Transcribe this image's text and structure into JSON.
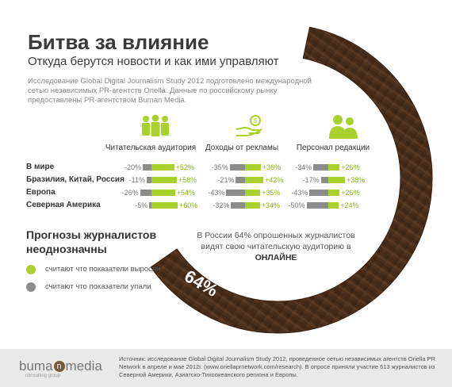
{
  "header": {
    "title": "Битва за влияние",
    "subtitle": "Откуда берутся новости и как ими управляют",
    "intro": "Исследование Global Digital Journalism Study 2012 подготовлено международной сетью независимых PR-агентств Oriella. Данные по российскому рынку предоставлены PR-агентством Buman Media."
  },
  "chart_data": {
    "type": "bar",
    "categories": [
      "В мире",
      "Бразилия, Китай, Россия",
      "Европа",
      "Северная Америка"
    ],
    "groups": [
      {
        "label": "Читательская аудитория",
        "icon": "people-group-icon",
        "negative": [
          -20,
          -11,
          -26,
          -5
        ],
        "positive": [
          52,
          58,
          54,
          60
        ],
        "negative_labels": [
          "-20%",
          "-11%",
          "-26%",
          "-5%"
        ],
        "positive_labels": [
          "+52%",
          "+58%",
          "+54%",
          "+60%"
        ]
      },
      {
        "label": "Доходы от рекламы",
        "icon": "hand-coins-icon",
        "negative": [
          -35,
          -21,
          -43,
          -32
        ],
        "positive": [
          36,
          42,
          35,
          34
        ],
        "negative_labels": [
          "-35%",
          "-21%",
          "-43%",
          "-32%"
        ],
        "positive_labels": [
          "+36%",
          "+42%",
          "+35%",
          "+34%"
        ]
      },
      {
        "label": "Персонал редакции",
        "icon": "staff-pair-icon",
        "negative": [
          -34,
          -17,
          -43,
          -50
        ],
        "positive": [
          26,
          38,
          26,
          24
        ],
        "negative_labels": [
          "-34%",
          "-17%",
          "-43%",
          "-50%"
        ],
        "positive_labels": [
          "+26%",
          "+38%",
          "+26%",
          "+24%"
        ]
      }
    ],
    "colors": {
      "positive": "#a8d12e",
      "negative": "#8c8c8c"
    }
  },
  "forecast": {
    "title": "Прогнозы журналистов неоднозначны",
    "legend": [
      {
        "text": "считают что показатели выросли",
        "color": "#a8d12e"
      },
      {
        "text": "считают что показатели упали",
        "color": "#8c8c8c"
      }
    ]
  },
  "russia": {
    "text": "В России 64% опрошенных журналистов видят свою читательскую аудиторию в",
    "emph": "ОНЛАЙНЕ",
    "percent": "64%",
    "value": 64
  },
  "footer": {
    "source": "Источник: исследование Global Digital Journalism Study 2012, проведенное сетью независимых агентств Oriella PR Network в апреле и мае 2012г. (www.oriellaprnetwork.com/research). В опросе приняли участие 613 журналистов из Северной Америки, Азиатско-Тихоокеанского региона и Европы.",
    "logo": "buma",
    "logo_mark": "n",
    "logo_tail": "media",
    "logo_sub": "consulting group"
  }
}
